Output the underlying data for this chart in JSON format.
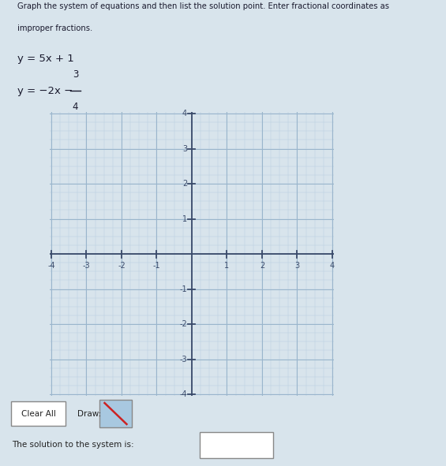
{
  "title_line1": "Graph the system of equations and then list the solution point. Enter fractional coordinates as",
  "title_line2": "improper fractions.",
  "eq1": "y = 5x + 1",
  "xmin": -4,
  "xmax": 4,
  "ymin": -4,
  "ymax": 4,
  "xticks": [
    -4,
    -3,
    -2,
    -1,
    1,
    2,
    3,
    4
  ],
  "yticks": [
    -4,
    -3,
    -2,
    -1,
    1,
    2,
    3,
    4
  ],
  "grid_major_color": "#9ab5cc",
  "grid_minor_color": "#b8cfe0",
  "axis_color": "#3a4a6a",
  "bg_color": "#dde9f2",
  "page_bg": "#d8e4ec",
  "outer_bg": "#c8d8e4",
  "tick_label_color": "#3a4a6a",
  "button_clear_text": "Clear All",
  "button_draw_text": "Draw:",
  "solution_label": "The solution to the system is:"
}
